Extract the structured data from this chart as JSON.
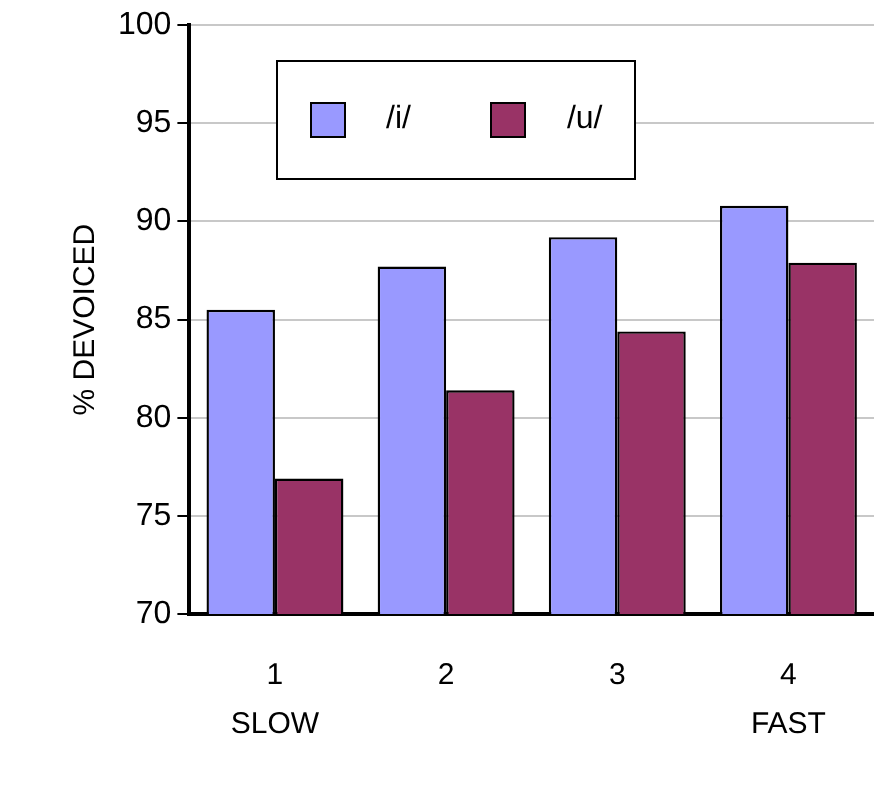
{
  "chart_data": {
    "type": "bar",
    "ylabel": "% DEVOICED",
    "categories": [
      "1",
      "2",
      "3",
      "4"
    ],
    "series": [
      {
        "name": "/i/",
        "color": "#9999ff",
        "values": [
          85.5,
          87.7,
          89.2,
          90.8
        ]
      },
      {
        "name": "/u/",
        "color": "#993366",
        "values": [
          76.9,
          81.4,
          84.4,
          87.9
        ]
      }
    ],
    "ylim": [
      70,
      100
    ],
    "yticks": [
      70,
      75,
      80,
      85,
      90,
      95,
      100
    ],
    "grid": "y",
    "legend": "top left",
    "annotations": [
      {
        "text": "SLOW",
        "x": "1"
      },
      {
        "text": "FAST",
        "x": "4"
      }
    ]
  }
}
